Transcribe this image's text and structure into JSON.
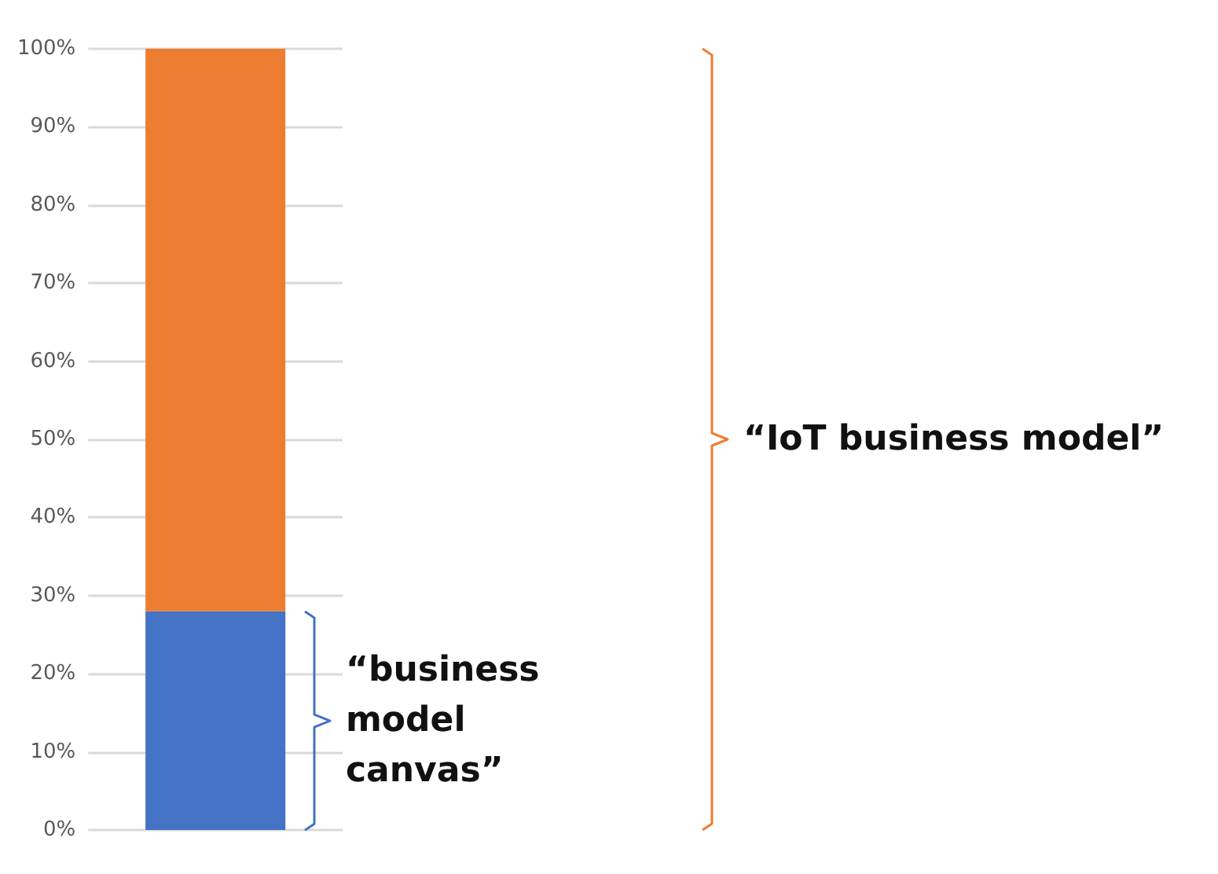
{
  "chart_data": {
    "type": "bar",
    "stacked": true,
    "categories": [
      null
    ],
    "series": [
      {
        "color": "#4472c4",
        "values": [
          28
        ]
      },
      {
        "color": "#ed7d31",
        "values": [
          72
        ]
      }
    ],
    "ylim": [
      0,
      100
    ],
    "yticks": [
      {
        "value": 0,
        "label": "0%"
      },
      {
        "value": 10,
        "label": "10%"
      },
      {
        "value": 20,
        "label": "20%"
      },
      {
        "value": 30,
        "label": "30%"
      },
      {
        "value": 40,
        "label": "40%"
      },
      {
        "value": 50,
        "label": "50%"
      },
      {
        "value": 60,
        "label": "60%"
      },
      {
        "value": 70,
        "label": "70%"
      },
      {
        "value": 80,
        "label": "80%"
      },
      {
        "value": 90,
        "label": "90%"
      },
      {
        "value": 100,
        "label": "100%"
      }
    ],
    "grid": "y",
    "annotations": [
      "“business model canvas”",
      "“IoT business model”"
    ]
  }
}
